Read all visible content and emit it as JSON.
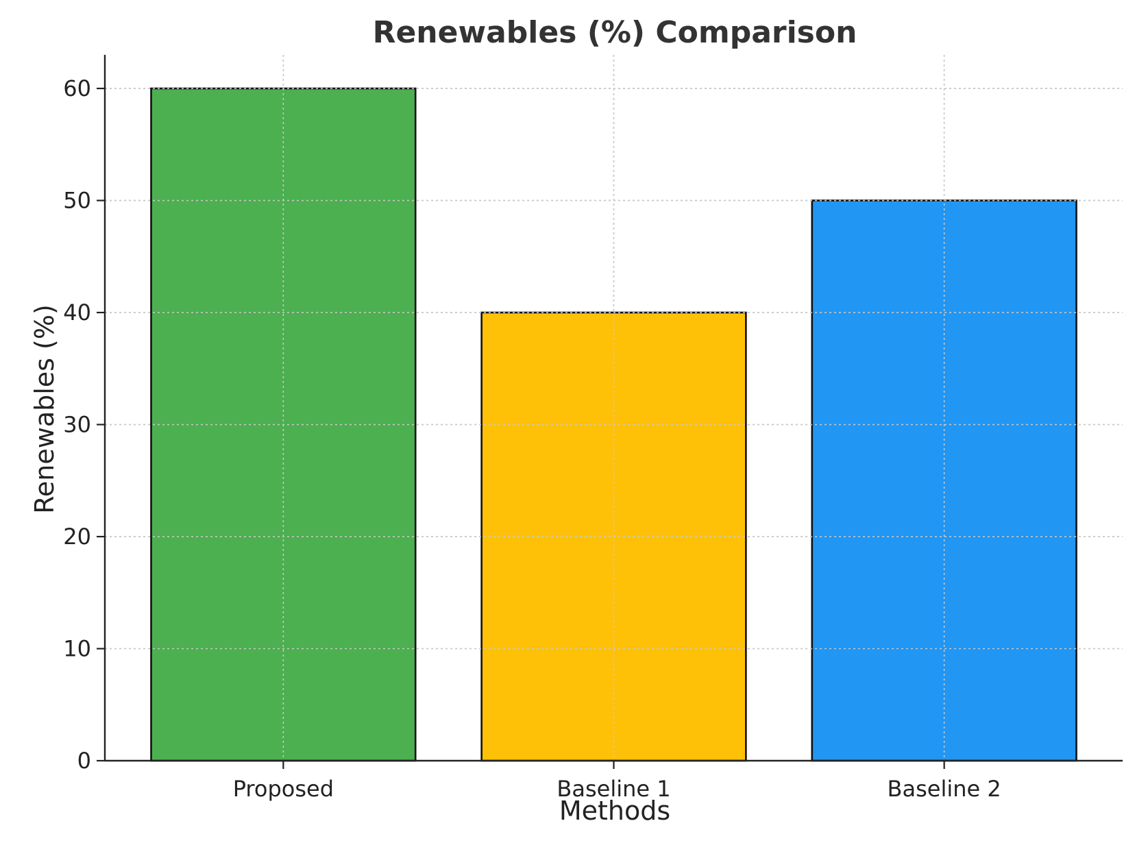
{
  "chart_data": {
    "type": "bar",
    "title": "Renewables (%) Comparison",
    "xlabel": "Methods",
    "ylabel": "Renewables (%)",
    "categories": [
      "Proposed",
      "Baseline 1",
      "Baseline 2"
    ],
    "values": [
      60,
      40,
      50
    ],
    "colors": [
      "#4caf50",
      "#ffc107",
      "#2196f3"
    ],
    "bar_edge_color": "#111111",
    "ylim": [
      0,
      63
    ],
    "yticks": [
      0,
      10,
      20,
      30,
      40,
      50,
      60
    ],
    "grid": true,
    "legend": "none"
  }
}
